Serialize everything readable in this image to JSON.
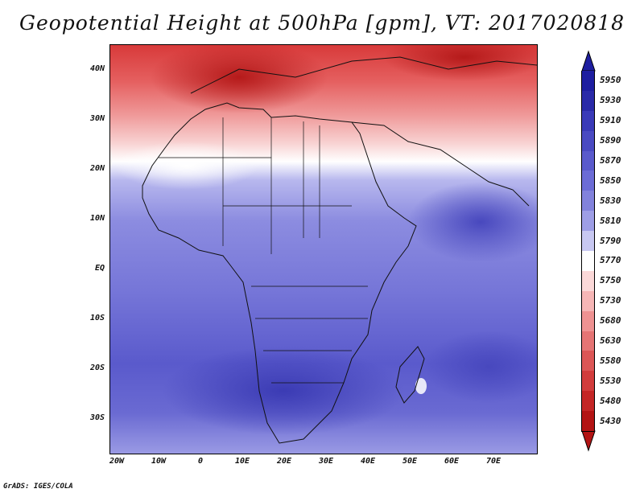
{
  "title": "Geopotential Height at 500hPa [gpm], VT: 2017020818",
  "footer": "GrADS: IGES/COLA",
  "map": {
    "lat_labels": [
      "40N",
      "30N",
      "20N",
      "10N",
      "EQ",
      "10S",
      "20S",
      "30S"
    ],
    "lon_labels": [
      "20W",
      "10W",
      "0",
      "10E",
      "20E",
      "30E",
      "40E",
      "50E",
      "60E",
      "70E"
    ]
  },
  "colorbar": {
    "levels": [
      "5950",
      "5930",
      "5910",
      "5890",
      "5870",
      "5850",
      "5830",
      "5810",
      "5790",
      "5770",
      "5750",
      "5730",
      "5680",
      "5630",
      "5580",
      "5530",
      "5480",
      "5430"
    ],
    "colors": [
      "#1e1ea0",
      "#2a2aa8",
      "#3a3ab8",
      "#4a4ac2",
      "#5a5acc",
      "#6c6cd6",
      "#8282dc",
      "#9e9ee6",
      "#c8c8f2",
      "#ffffff",
      "#fbd8d8",
      "#f6b6b6",
      "#ef9292",
      "#e57474",
      "#dc5656",
      "#d23c3c",
      "#c42626",
      "#b31414"
    ]
  }
}
